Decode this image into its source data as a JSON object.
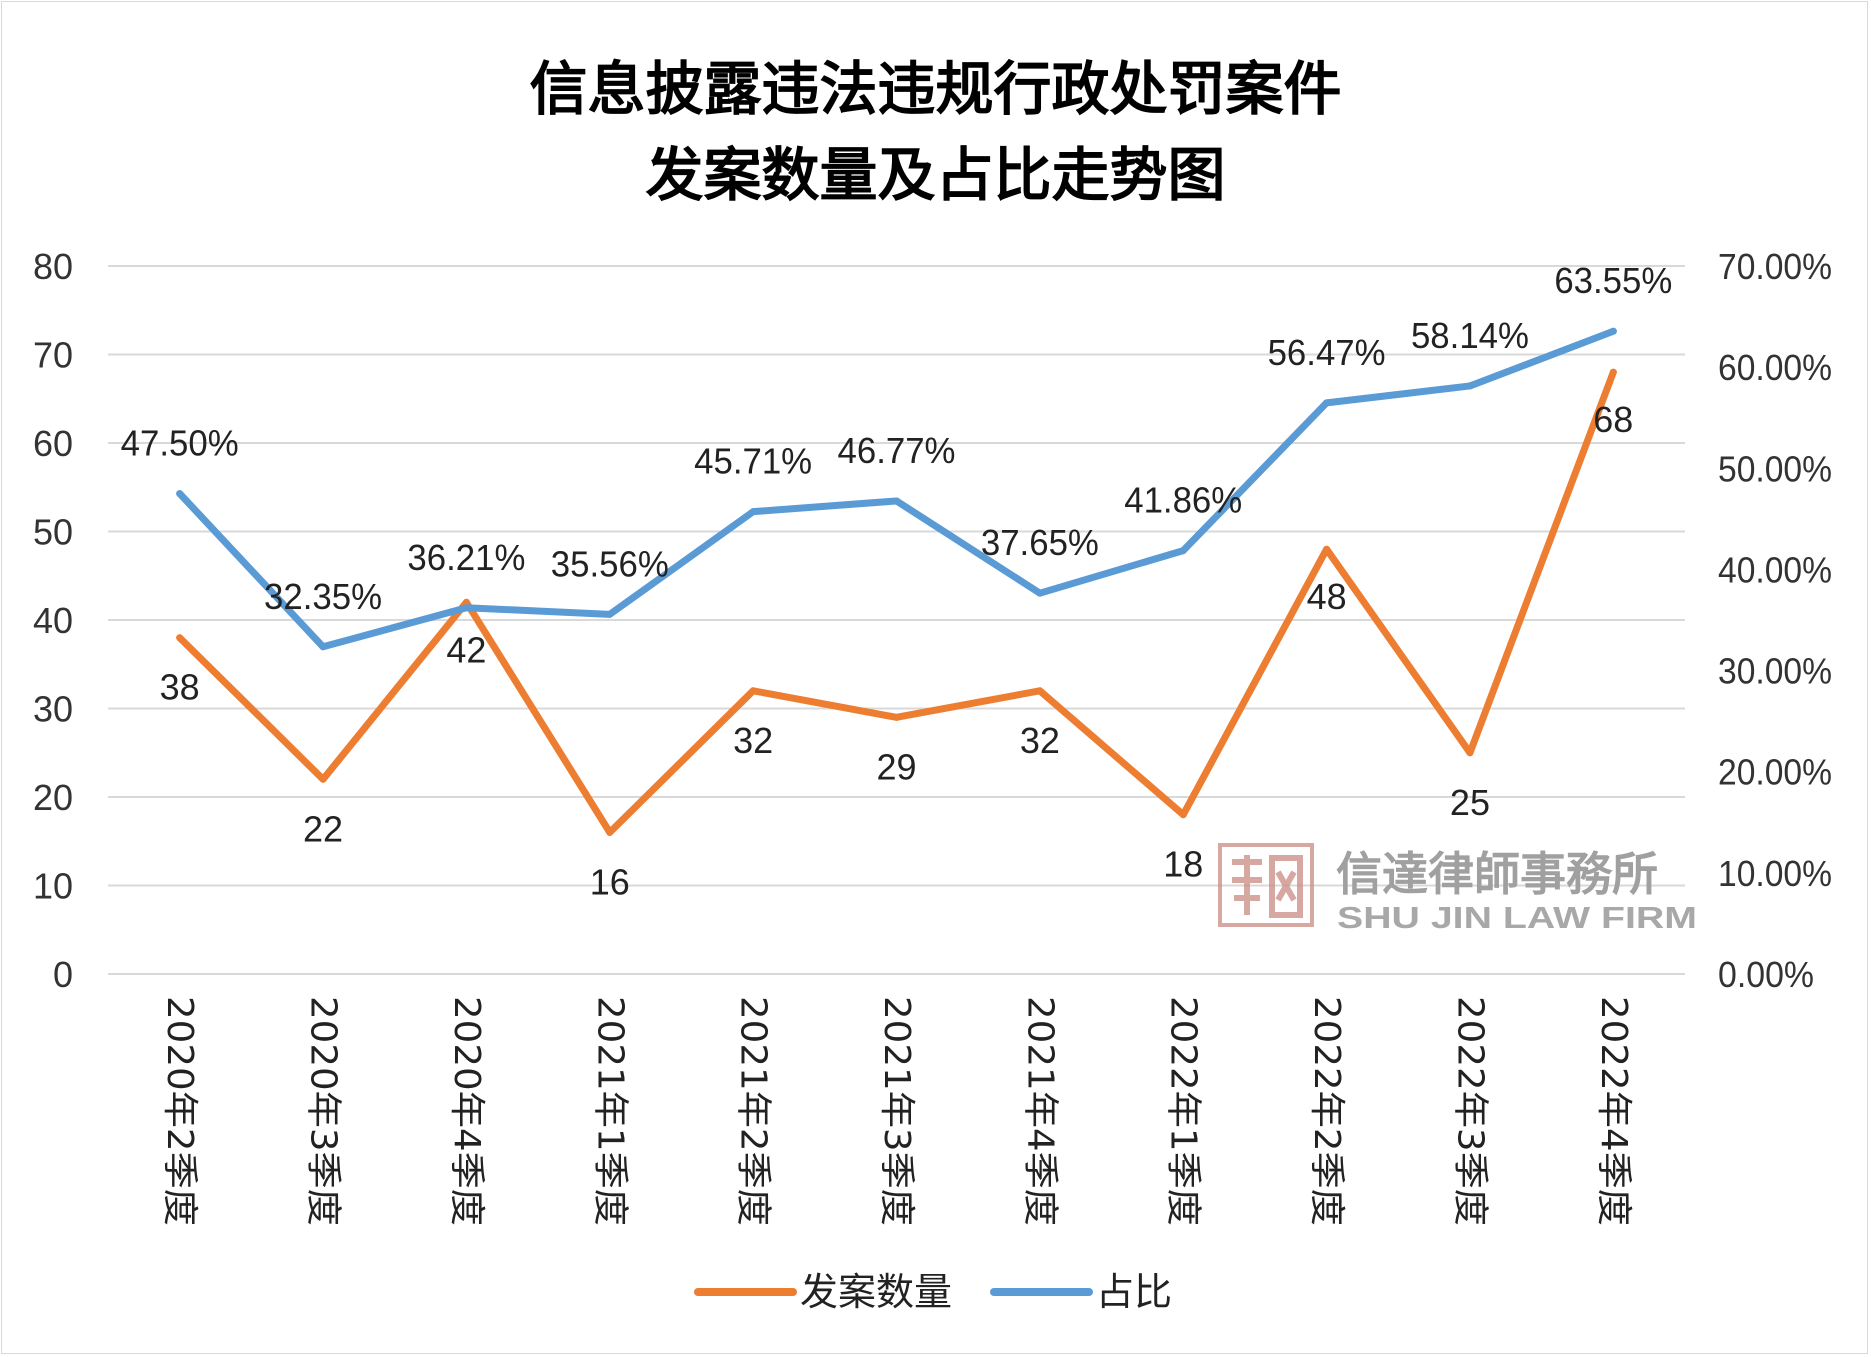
{
  "chart_data": {
    "type": "line",
    "title": [
      "信息披露违法违规行政处罚案件",
      "发案数量及占比走势图"
    ],
    "categories": [
      "2020年2季度",
      "2020年3季度",
      "2020年4季度",
      "2021年1季度",
      "2021年2季度",
      "2021年3季度",
      "2021年4季度",
      "2022年1季度",
      "2022年2季度",
      "2022年3季度",
      "2022年4季度"
    ],
    "series": [
      {
        "name": "发案数量",
        "axis": "left",
        "color": "#ED7D31",
        "values": [
          38,
          22,
          42,
          16,
          32,
          29,
          32,
          18,
          48,
          25,
          68
        ],
        "labels": [
          "38",
          "22",
          "42",
          "16",
          "32",
          "29",
          "32",
          "18",
          "48",
          "25",
          "68"
        ]
      },
      {
        "name": "占比",
        "axis": "right",
        "color": "#5B9BD5",
        "values": [
          47.5,
          32.35,
          36.21,
          35.56,
          45.71,
          46.77,
          37.65,
          41.86,
          56.47,
          58.14,
          63.55
        ],
        "labels": [
          "47.50%",
          "32.35%",
          "36.21%",
          "35.56%",
          "45.71%",
          "46.77%",
          "37.65%",
          "41.86%",
          "56.47%",
          "58.14%",
          "63.55%"
        ]
      }
    ],
    "y_left": {
      "min": 0,
      "max": 80,
      "step": 10,
      "ticks": [
        "0",
        "10",
        "20",
        "30",
        "40",
        "50",
        "60",
        "70",
        "80"
      ]
    },
    "y_right": {
      "min": 0,
      "max": 70,
      "step": 10,
      "ticks": [
        "0.00%",
        "10.00%",
        "20.00%",
        "30.00%",
        "40.00%",
        "50.00%",
        "60.00%",
        "70.00%"
      ]
    },
    "grid": true,
    "legend_position": "bottom"
  },
  "watermark": {
    "name_cn": "信達律師事務所",
    "name_en": "SHU JIN LAW FIRM",
    "seal_color": "#b86a62"
  }
}
